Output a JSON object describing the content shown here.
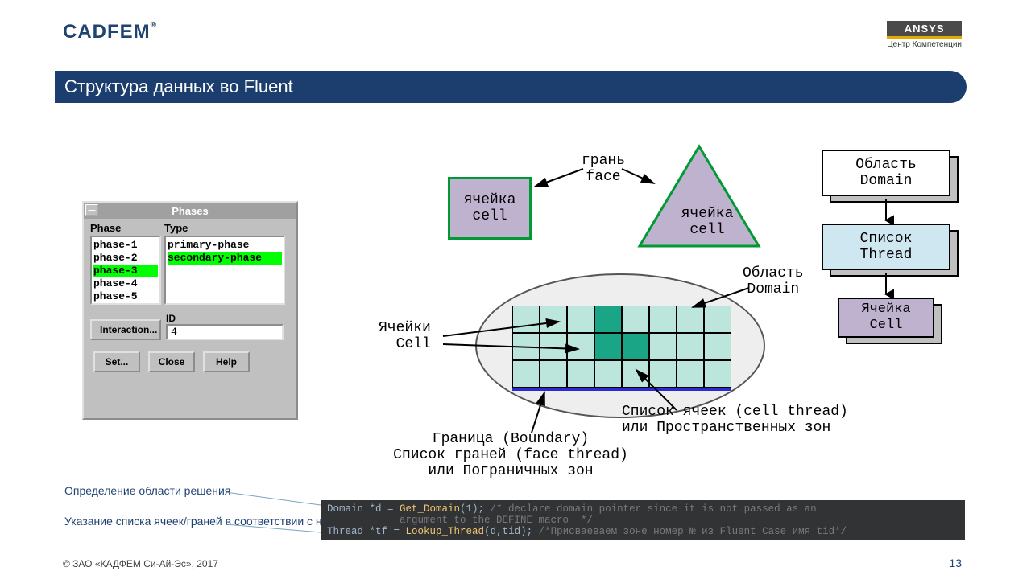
{
  "logo_left": "CADFEM",
  "logo_right": {
    "brand": "ANSYS",
    "subtitle": "Центр Компетенции"
  },
  "title": "Структура данных во Fluent",
  "phases_dialog": {
    "title": "Phases",
    "col_phase": "Phase",
    "col_type": "Type",
    "phases": [
      "phase-1",
      "phase-2",
      "phase-3",
      "phase-4",
      "phase-5"
    ],
    "phase_selected_index": 2,
    "types": [
      "primary-phase",
      "secondary-phase"
    ],
    "type_selected_index": 1,
    "id_label": "ID",
    "id_value": "4",
    "btn_interaction": "Interaction...",
    "btn_set": "Set...",
    "btn_close": "Close",
    "btn_help": "Help"
  },
  "hierarchy": {
    "box1_l1": "Область",
    "box1_l2": "Domain",
    "box2_l1": "Список",
    "box2_l2": "Thread",
    "box3_l1": "Ячейка",
    "box3_l2": "Cell",
    "colors": {
      "white": "#ffffff",
      "blue": "#cfe7f0",
      "purple": "#bfb2cf"
    }
  },
  "face_label_l1": "грань",
  "face_label_l2": "face",
  "cell_sq_l1": "ячейка",
  "cell_sq_l2": "cell",
  "cell_tri_l1": "ячейка",
  "cell_tri_l2": "cell",
  "domain_diag": {
    "label_domain_l1": "Область",
    "label_domain_l2": "Domain",
    "label_cells_l1": "Ячейки",
    "label_cells_l2": "Cell",
    "label_cthread_l1": "Список ячеек (cell thread)",
    "label_cthread_l2": "или Пространственных зон",
    "label_boundary_l1": "Граница (Boundary)",
    "label_boundary_l2": "Список граней (face thread)",
    "label_boundary_l3": "или Пограничных зон",
    "grid": {
      "cols": 8,
      "rows": 3,
      "highlights": [
        [
          0,
          3
        ],
        [
          1,
          3
        ],
        [
          1,
          4
        ]
      ],
      "cell_color": "#bce6dc",
      "hl_color": "#1aa586"
    }
  },
  "note1": "Определение области решения",
  "note2_prefix": "Указание списка ячеек/граней в соответствии с номером t",
  "code": {
    "l1a": "Domain *d = ",
    "l1b": "Get_Domain",
    "l1c": "(1); ",
    "l1cm": "/* declare domain pointer since it is not passed as an",
    "l2cm": "            argument to the DEFINE macro  */",
    "l3a": "Thread *tf = ",
    "l3b": "Lookup_Thread",
    "l3c": "(d,tid); ",
    "l3cm": "/*Присваеваем зоне номер № из Fluent Case имя tid*/"
  },
  "footer_left": "© ЗАО «КАДФЕМ Си-Ай-Эс», 2017",
  "page_number": "13",
  "colors": {
    "title_bg": "#1b3e6f",
    "logo": "#204472",
    "green": "#009933",
    "purple": "#bfb2cf"
  }
}
